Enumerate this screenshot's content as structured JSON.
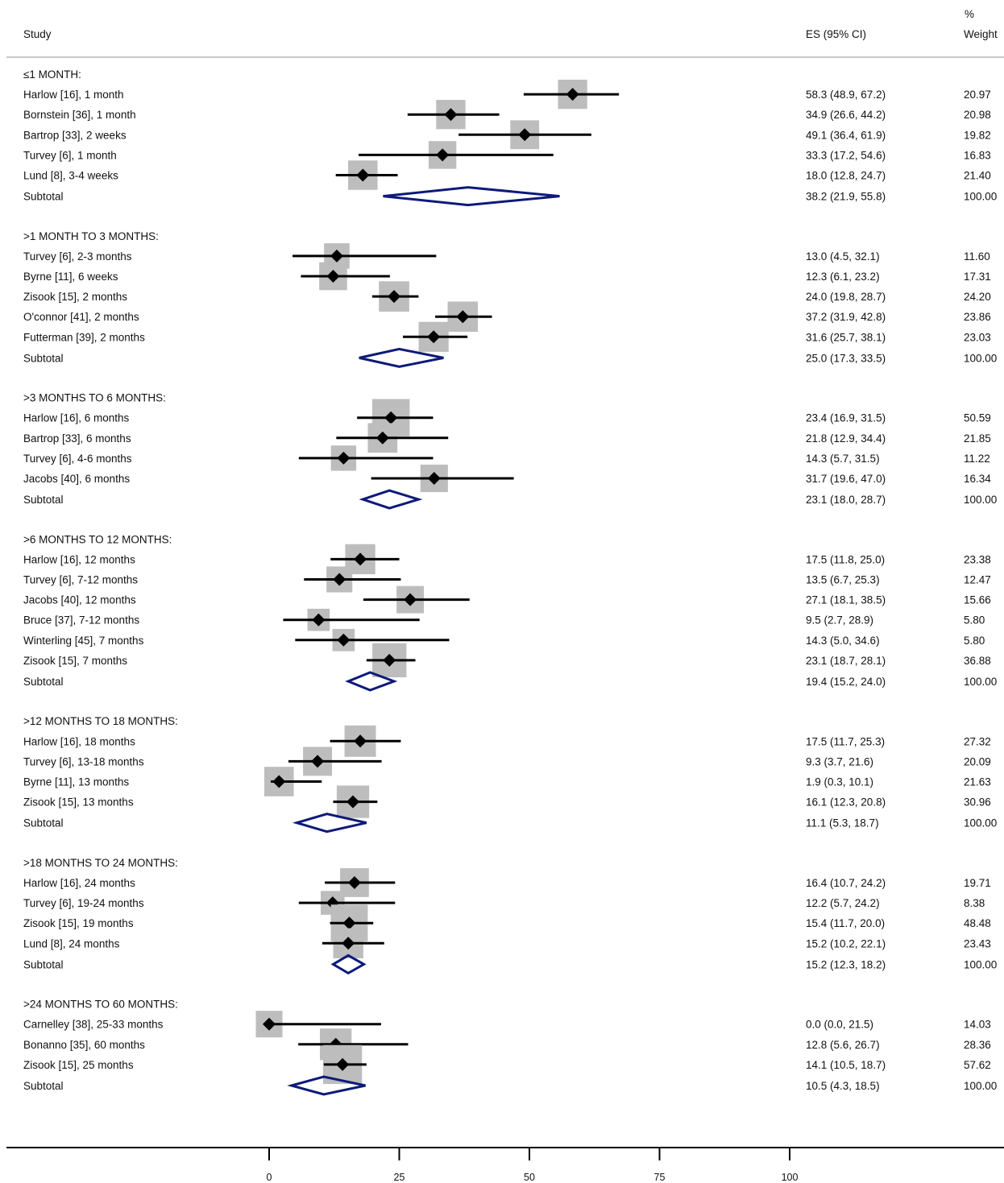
{
  "headers": {
    "study": "Study",
    "es": "ES (95% CI)",
    "weight_top": "%",
    "weight_bottom": "Weight"
  },
  "colors": {
    "marker_box": "#bdbdbd",
    "diamond": "#0d1a7a",
    "line": "#000000"
  },
  "chart_data": {
    "type": "forest",
    "x_ticks": [
      0,
      25,
      50,
      75,
      100
    ],
    "x_tick_labels": [
      "0",
      "25",
      "50",
      "75",
      "100"
    ],
    "xlim": [
      0,
      100
    ],
    "groups": [
      {
        "label": "≤1 MONTH:",
        "studies": [
          {
            "name": "Harlow [16], 1 month",
            "es": 58.3,
            "lo": 48.9,
            "hi": 67.2,
            "ci_text": "58.3 (48.9, 67.2)",
            "weight": "20.97"
          },
          {
            "name": "Bornstein [36], 1 month",
            "es": 34.9,
            "lo": 26.6,
            "hi": 44.2,
            "ci_text": "34.9 (26.6, 44.2)",
            "weight": "20.98"
          },
          {
            "name": "Bartrop [33], 2 weeks",
            "es": 49.1,
            "lo": 36.4,
            "hi": 61.9,
            "ci_text": "49.1 (36.4, 61.9)",
            "weight": "19.82"
          },
          {
            "name": "Turvey [6], 1 month",
            "es": 33.3,
            "lo": 17.2,
            "hi": 54.6,
            "ci_text": "33.3 (17.2, 54.6)",
            "weight": "16.83"
          },
          {
            "name": "Lund [8], 3-4 weeks",
            "es": 18.0,
            "lo": 12.8,
            "hi": 24.7,
            "ci_text": "18.0 (12.8, 24.7)",
            "weight": "21.40"
          }
        ],
        "subtotal": {
          "name": "Subtotal",
          "es": 38.2,
          "lo": 21.9,
          "hi": 55.8,
          "ci_text": "38.2 (21.9, 55.8)",
          "weight": "100.00"
        }
      },
      {
        "label": ">1 MONTH TO 3 MONTHS:",
        "studies": [
          {
            "name": "Turvey [6], 2-3 months",
            "es": 13.0,
            "lo": 4.5,
            "hi": 32.1,
            "ci_text": "13.0 (4.5, 32.1)",
            "weight": "11.60"
          },
          {
            "name": "Byrne [11], 6 weeks",
            "es": 12.3,
            "lo": 6.1,
            "hi": 23.2,
            "ci_text": "12.3 (6.1, 23.2)",
            "weight": "17.31"
          },
          {
            "name": "Zisook [15], 2 months",
            "es": 24.0,
            "lo": 19.8,
            "hi": 28.7,
            "ci_text": "24.0 (19.8, 28.7)",
            "weight": "24.20"
          },
          {
            "name": "O'connor [41], 2 months",
            "es": 37.2,
            "lo": 31.9,
            "hi": 42.8,
            "ci_text": "37.2 (31.9, 42.8)",
            "weight": "23.86"
          },
          {
            "name": "Futterman [39], 2 months",
            "es": 31.6,
            "lo": 25.7,
            "hi": 38.1,
            "ci_text": "31.6 (25.7, 38.1)",
            "weight": "23.03"
          }
        ],
        "subtotal": {
          "name": "Subtotal",
          "es": 25.0,
          "lo": 17.3,
          "hi": 33.5,
          "ci_text": "25.0 (17.3, 33.5)",
          "weight": "100.00"
        }
      },
      {
        "label": ">3 MONTHS TO 6 MONTHS:",
        "studies": [
          {
            "name": "Harlow [16], 6 months",
            "es": 23.4,
            "lo": 16.9,
            "hi": 31.5,
            "ci_text": "23.4 (16.9, 31.5)",
            "weight": "50.59"
          },
          {
            "name": "Bartrop [33], 6 months",
            "es": 21.8,
            "lo": 12.9,
            "hi": 34.4,
            "ci_text": "21.8 (12.9, 34.4)",
            "weight": "21.85"
          },
          {
            "name": "Turvey [6], 4-6 months",
            "es": 14.3,
            "lo": 5.7,
            "hi": 31.5,
            "ci_text": "14.3 (5.7, 31.5)",
            "weight": "11.22"
          },
          {
            "name": "Jacobs [40], 6 months",
            "es": 31.7,
            "lo": 19.6,
            "hi": 47.0,
            "ci_text": "31.7 (19.6, 47.0)",
            "weight": "16.34"
          }
        ],
        "subtotal": {
          "name": "Subtotal",
          "es": 23.1,
          "lo": 18.0,
          "hi": 28.7,
          "ci_text": "23.1 (18.0, 28.7)",
          "weight": "100.00"
        }
      },
      {
        "label": ">6 MONTHS TO 12 MONTHS:",
        "studies": [
          {
            "name": "Harlow [16], 12 months",
            "es": 17.5,
            "lo": 11.8,
            "hi": 25.0,
            "ci_text": "17.5 (11.8, 25.0)",
            "weight": "23.38"
          },
          {
            "name": "Turvey [6], 7-12 months",
            "es": 13.5,
            "lo": 6.7,
            "hi": 25.3,
            "ci_text": "13.5 (6.7, 25.3)",
            "weight": "12.47"
          },
          {
            "name": "Jacobs [40], 12 months",
            "es": 27.1,
            "lo": 18.1,
            "hi": 38.5,
            "ci_text": "27.1 (18.1, 38.5)",
            "weight": "15.66"
          },
          {
            "name": "Bruce [37], 7-12 months",
            "es": 9.5,
            "lo": 2.7,
            "hi": 28.9,
            "ci_text": "9.5 (2.7, 28.9)",
            "weight": "5.80"
          },
          {
            "name": "Winterling [45], 7 months",
            "es": 14.3,
            "lo": 5.0,
            "hi": 34.6,
            "ci_text": "14.3 (5.0, 34.6)",
            "weight": "5.80"
          },
          {
            "name": "Zisook [15], 7 months",
            "es": 23.1,
            "lo": 18.7,
            "hi": 28.1,
            "ci_text": "23.1 (18.7, 28.1)",
            "weight": "36.88"
          }
        ],
        "subtotal": {
          "name": "Subtotal",
          "es": 19.4,
          "lo": 15.2,
          "hi": 24.0,
          "ci_text": "19.4 (15.2, 24.0)",
          "weight": "100.00"
        }
      },
      {
        "label": ">12 MONTHS TO 18 MONTHS:",
        "studies": [
          {
            "name": "Harlow [16], 18 months",
            "es": 17.5,
            "lo": 11.7,
            "hi": 25.3,
            "ci_text": "17.5 (11.7, 25.3)",
            "weight": "27.32"
          },
          {
            "name": "Turvey [6], 13-18 months",
            "es": 9.3,
            "lo": 3.7,
            "hi": 21.6,
            "ci_text": "9.3 (3.7, 21.6)",
            "weight": "20.09"
          },
          {
            "name": "Byrne [11], 13 months",
            "es": 1.9,
            "lo": 0.3,
            "hi": 10.1,
            "ci_text": "1.9 (0.3, 10.1)",
            "weight": "21.63"
          },
          {
            "name": "Zisook [15], 13 months",
            "es": 16.1,
            "lo": 12.3,
            "hi": 20.8,
            "ci_text": "16.1 (12.3, 20.8)",
            "weight": "30.96"
          }
        ],
        "subtotal": {
          "name": "Subtotal",
          "es": 11.1,
          "lo": 5.3,
          "hi": 18.7,
          "ci_text": "11.1 (5.3, 18.7)",
          "weight": "100.00"
        }
      },
      {
        "label": ">18 MONTHS TO 24 MONTHS:",
        "studies": [
          {
            "name": "Harlow [16], 24 months",
            "es": 16.4,
            "lo": 10.7,
            "hi": 24.2,
            "ci_text": "16.4 (10.7, 24.2)",
            "weight": "19.71"
          },
          {
            "name": "Turvey [6], 19-24 months",
            "es": 12.2,
            "lo": 5.7,
            "hi": 24.2,
            "ci_text": "12.2 (5.7, 24.2)",
            "weight": "8.38"
          },
          {
            "name": "Zisook [15], 19 months",
            "es": 15.4,
            "lo": 11.7,
            "hi": 20.0,
            "ci_text": "15.4 (11.7, 20.0)",
            "weight": "48.48"
          },
          {
            "name": "Lund [8], 24 months",
            "es": 15.2,
            "lo": 10.2,
            "hi": 22.1,
            "ci_text": "15.2 (10.2, 22.1)",
            "weight": "23.43"
          }
        ],
        "subtotal": {
          "name": "Subtotal",
          "es": 15.2,
          "lo": 12.3,
          "hi": 18.2,
          "ci_text": "15.2 (12.3, 18.2)",
          "weight": "100.00"
        }
      },
      {
        "label": ">24 MONTHS TO 60 MONTHS:",
        "studies": [
          {
            "name": "Carnelley [38], 25-33 months",
            "es": 0.0,
            "lo": 0.0,
            "hi": 21.5,
            "ci_text": "0.0 (0.0, 21.5)",
            "weight": "14.03"
          },
          {
            "name": "Bonanno [35], 60 months",
            "es": 12.8,
            "lo": 5.6,
            "hi": 26.7,
            "ci_text": "12.8 (5.6, 26.7)",
            "weight": "28.36"
          },
          {
            "name": "Zisook [15], 25 months",
            "es": 14.1,
            "lo": 10.5,
            "hi": 18.7,
            "ci_text": "14.1 (10.5, 18.7)",
            "weight": "57.62"
          }
        ],
        "subtotal": {
          "name": "Subtotal",
          "es": 10.5,
          "lo": 4.3,
          "hi": 18.5,
          "ci_text": "10.5 (4.3, 18.5)",
          "weight": "100.00"
        }
      }
    ]
  }
}
